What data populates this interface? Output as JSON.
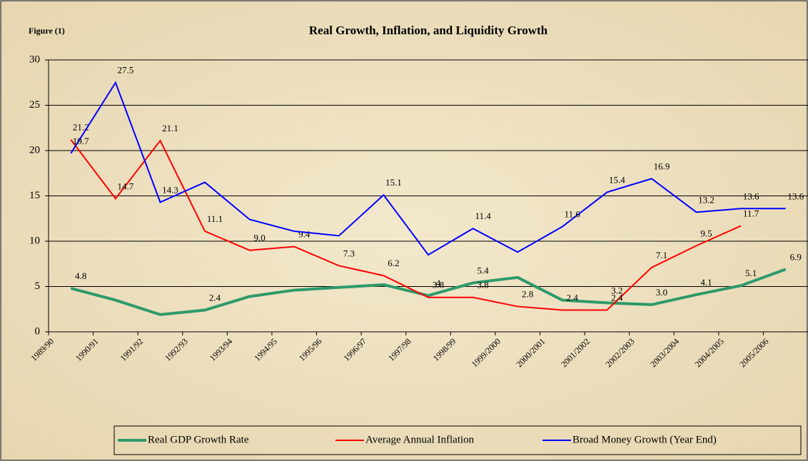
{
  "chart_data": {
    "type": "line",
    "title": "Real Growth, Inflation, and Liquidity Growth",
    "annotation": "Figure (1)",
    "categories": [
      "1989/90",
      "1990/91",
      "1991/92",
      "1992/93",
      "1993/94",
      "1994/95",
      "1995/96",
      "1996/97",
      "1997/98",
      "1998/99",
      "1999/2000",
      "2000/2001",
      "2001/2002",
      "2002/2003",
      "2003/2004",
      "2004/2005",
      "2005/2006"
    ],
    "series": [
      {
        "name": "Real GDP Growth Rate",
        "color": "#2e9a6a",
        "values": [
          4.8,
          3.5,
          1.9,
          2.4,
          3.9,
          4.6,
          4.9,
          5.2,
          4,
          5.4,
          6.0,
          3.5,
          3.2,
          3.0,
          4.1,
          5.1,
          6.9
        ],
        "value_labels": [
          "4.8",
          null,
          null,
          "2.4",
          null,
          null,
          null,
          null,
          "4",
          "5.4",
          null,
          null,
          "3.2",
          "3.0",
          "4.1",
          "5.1",
          "6.9"
        ]
      },
      {
        "name": "Average Annual Inflation",
        "color": "#ff0000",
        "values": [
          21.2,
          14.7,
          21.1,
          11.1,
          9.0,
          9.4,
          7.3,
          6.2,
          3.8,
          3.8,
          2.8,
          2.4,
          2.4,
          7.1,
          9.5,
          11.7,
          null
        ],
        "value_labels": [
          "21.2",
          "14.7",
          "21.1",
          "11.1",
          "9.0",
          "9.4",
          "7.3",
          "6.2",
          "3.8",
          "3.8",
          "2.8",
          "2.4",
          "2.4",
          "7.1",
          "9.5",
          "11.7",
          null
        ]
      },
      {
        "name": "Broad Money Growth (Year End)",
        "color": "#0000ff",
        "values": [
          19.7,
          27.5,
          14.3,
          16.5,
          12.4,
          11.1,
          10.6,
          15.1,
          8.5,
          11.4,
          8.8,
          11.6,
          15.4,
          16.9,
          13.2,
          13.6,
          13.6
        ],
        "value_labels": [
          "19.7",
          "27.5",
          "14.3",
          null,
          null,
          null,
          null,
          "15.1",
          null,
          "11.4",
          null,
          "11.6",
          "15.4",
          "16.9",
          "13.2",
          "13.6",
          "13.6"
        ]
      }
    ],
    "ylim": [
      0,
      30
    ],
    "yticks": [
      0,
      5,
      10,
      15,
      20,
      25,
      30
    ],
    "grid": true,
    "legend": "bottom"
  }
}
